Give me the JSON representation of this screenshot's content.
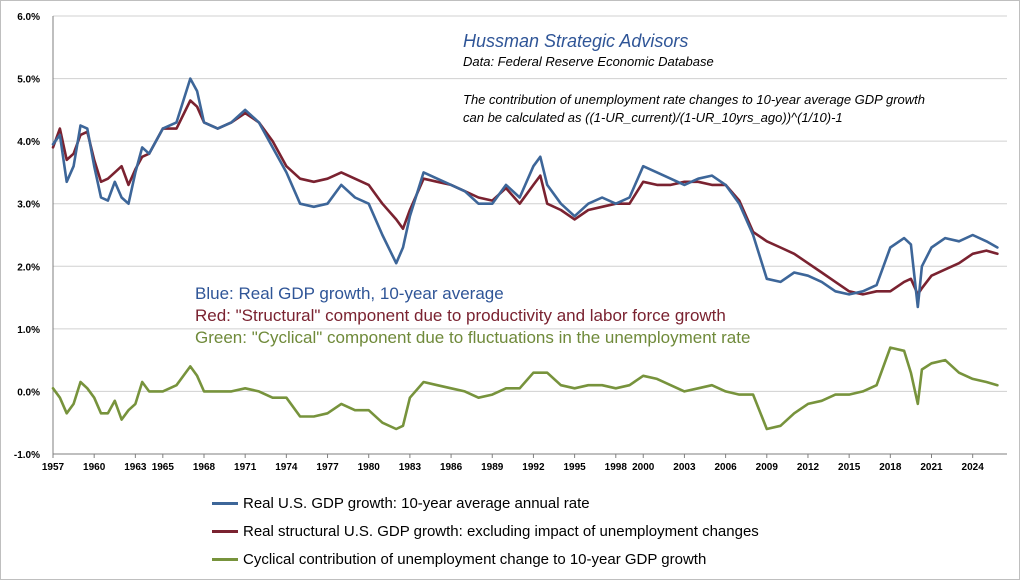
{
  "chart_data": {
    "type": "line",
    "title": "Hussman Strategic Advisors",
    "source": "Data: Federal Reserve Economic Database",
    "note_line1": "The contribution of unemployment rate changes to 10-year average GDP growth",
    "note_line2": "can be calculated as ((1-UR_current)/(1-UR_10yrs_ago))^(1/10)-1",
    "color_note_blue": "Blue: Real GDP growth, 10-year average",
    "color_note_red": "Red: \"Structural\" component due to productivity and labor force growth",
    "color_note_green": "Green: \"Cyclical\" component due to fluctuations in the unemployment rate",
    "xlim": [
      1957,
      2026.5
    ],
    "ylim": [
      -1.0,
      6.0
    ],
    "y_ticks": [
      "-1.0%",
      "0.0%",
      "1.0%",
      "2.0%",
      "3.0%",
      "4.0%",
      "5.0%",
      "6.0%"
    ],
    "x_ticks": [
      "1957",
      "1960",
      "1963",
      "1965",
      "1968",
      "1971",
      "1974",
      "1977",
      "1980",
      "1983",
      "1986",
      "1989",
      "1992",
      "1995",
      "1998",
      "2000",
      "2003",
      "2006",
      "2009",
      "2012",
      "2015",
      "2018",
      "2021",
      "2024"
    ],
    "grid": true,
    "series": [
      {
        "name": "Real U.S. GDP growth: 10-year average annual rate",
        "color": "#3d6699",
        "x": [
          1957,
          1957.5,
          1958,
          1958.5,
          1959,
          1959.5,
          1960,
          1960.5,
          1961,
          1961.5,
          1962,
          1962.5,
          1963,
          1963.5,
          1964,
          1965,
          1966,
          1967,
          1967.5,
          1968,
          1969,
          1970,
          1971,
          1972,
          1973,
          1974,
          1975,
          1976,
          1977,
          1978,
          1979,
          1980,
          1981,
          1982,
          1982.5,
          1983,
          1984,
          1985,
          1986,
          1987,
          1988,
          1989,
          1990,
          1991,
          1992,
          1992.5,
          1993,
          1994,
          1995,
          1996,
          1997,
          1998,
          1999,
          2000,
          2001,
          2002,
          2003,
          2004,
          2005,
          2006,
          2007,
          2008,
          2009,
          2010,
          2011,
          2012,
          2013,
          2014,
          2015,
          2016,
          2017,
          2018,
          2019,
          2019.5,
          2020,
          2020.3,
          2021,
          2022,
          2023,
          2024,
          2025,
          2025.8
        ],
        "values": [
          3.95,
          4.1,
          3.35,
          3.6,
          4.25,
          4.2,
          3.6,
          3.1,
          3.05,
          3.35,
          3.1,
          3.0,
          3.5,
          3.9,
          3.8,
          4.2,
          4.3,
          5.0,
          4.8,
          4.3,
          4.2,
          4.3,
          4.5,
          4.3,
          3.9,
          3.5,
          3.0,
          2.95,
          3.0,
          3.3,
          3.1,
          3.0,
          2.5,
          2.05,
          2.3,
          2.8,
          3.5,
          3.4,
          3.3,
          3.2,
          3.0,
          3.0,
          3.3,
          3.1,
          3.6,
          3.75,
          3.3,
          3.0,
          2.8,
          3.0,
          3.1,
          3.0,
          3.1,
          3.6,
          3.5,
          3.4,
          3.3,
          3.4,
          3.45,
          3.3,
          3.0,
          2.5,
          1.8,
          1.75,
          1.9,
          1.85,
          1.75,
          1.6,
          1.55,
          1.6,
          1.7,
          2.3,
          2.45,
          2.35,
          1.35,
          2.0,
          2.3,
          2.45,
          2.4,
          2.5,
          2.4,
          2.3
        ]
      },
      {
        "name": "Real structural U.S. GDP growth: excluding impact of unemployment changes",
        "color": "#7a2230",
        "x": [
          1957,
          1957.5,
          1958,
          1958.5,
          1959,
          1959.5,
          1960,
          1960.5,
          1961,
          1961.5,
          1962,
          1962.5,
          1963,
          1963.5,
          1964,
          1965,
          1966,
          1967,
          1967.5,
          1968,
          1969,
          1970,
          1971,
          1972,
          1973,
          1974,
          1975,
          1976,
          1977,
          1978,
          1979,
          1980,
          1981,
          1982,
          1982.5,
          1983,
          1984,
          1985,
          1986,
          1987,
          1988,
          1989,
          1990,
          1991,
          1992,
          1992.5,
          1993,
          1994,
          1995,
          1996,
          1997,
          1998,
          1999,
          2000,
          2001,
          2002,
          2003,
          2004,
          2005,
          2006,
          2007,
          2008,
          2009,
          2010,
          2011,
          2012,
          2013,
          2014,
          2015,
          2016,
          2017,
          2018,
          2019,
          2019.5,
          2020,
          2020.3,
          2021,
          2022,
          2023,
          2024,
          2025,
          2025.8
        ],
        "values": [
          3.9,
          4.2,
          3.7,
          3.8,
          4.1,
          4.15,
          3.7,
          3.35,
          3.4,
          3.5,
          3.6,
          3.3,
          3.55,
          3.75,
          3.8,
          4.2,
          4.2,
          4.65,
          4.55,
          4.3,
          4.2,
          4.3,
          4.45,
          4.3,
          4.0,
          3.6,
          3.4,
          3.35,
          3.4,
          3.5,
          3.4,
          3.3,
          3.0,
          2.75,
          2.6,
          2.9,
          3.4,
          3.35,
          3.3,
          3.2,
          3.1,
          3.05,
          3.25,
          3.0,
          3.3,
          3.45,
          3.0,
          2.9,
          2.75,
          2.9,
          2.95,
          3.0,
          3.0,
          3.35,
          3.3,
          3.3,
          3.35,
          3.35,
          3.3,
          3.3,
          3.05,
          2.55,
          2.4,
          2.3,
          2.2,
          2.05,
          1.9,
          1.75,
          1.6,
          1.55,
          1.6,
          1.6,
          1.75,
          1.8,
          1.55,
          1.65,
          1.85,
          1.95,
          2.05,
          2.2,
          2.25,
          2.2
        ]
      },
      {
        "name": "Cyclical contribution of unemployment change to 10-year GDP growth",
        "color": "#77933c",
        "x": [
          1957,
          1957.5,
          1958,
          1958.5,
          1959,
          1959.5,
          1960,
          1960.5,
          1961,
          1961.5,
          1962,
          1962.5,
          1963,
          1963.5,
          1964,
          1965,
          1966,
          1967,
          1967.5,
          1968,
          1969,
          1970,
          1971,
          1972,
          1973,
          1974,
          1975,
          1976,
          1977,
          1978,
          1979,
          1980,
          1981,
          1982,
          1982.5,
          1983,
          1984,
          1985,
          1986,
          1987,
          1988,
          1989,
          1990,
          1991,
          1992,
          1992.5,
          1993,
          1994,
          1995,
          1996,
          1997,
          1998,
          1999,
          2000,
          2001,
          2002,
          2003,
          2004,
          2005,
          2006,
          2007,
          2008,
          2009,
          2010,
          2011,
          2012,
          2013,
          2014,
          2015,
          2016,
          2017,
          2018,
          2019,
          2019.5,
          2020,
          2020.3,
          2021,
          2022,
          2023,
          2024,
          2025,
          2025.8
        ],
        "values": [
          0.05,
          -0.1,
          -0.35,
          -0.2,
          0.15,
          0.05,
          -0.1,
          -0.35,
          -0.35,
          -0.15,
          -0.45,
          -0.3,
          -0.2,
          0.15,
          0.0,
          0.0,
          0.1,
          0.4,
          0.25,
          0.0,
          0.0,
          0.0,
          0.05,
          0.0,
          -0.1,
          -0.1,
          -0.4,
          -0.4,
          -0.35,
          -0.2,
          -0.3,
          -0.3,
          -0.5,
          -0.6,
          -0.55,
          -0.1,
          0.15,
          0.1,
          0.05,
          0.0,
          -0.1,
          -0.05,
          0.05,
          0.05,
          0.3,
          0.3,
          0.3,
          0.1,
          0.05,
          0.1,
          0.1,
          0.05,
          0.1,
          0.25,
          0.2,
          0.1,
          0.0,
          0.05,
          0.1,
          0.0,
          -0.05,
          -0.05,
          -0.6,
          -0.55,
          -0.35,
          -0.2,
          -0.15,
          -0.05,
          -0.05,
          0.0,
          0.1,
          0.7,
          0.65,
          0.3,
          -0.2,
          0.35,
          0.45,
          0.5,
          0.3,
          0.2,
          0.15,
          0.1
        ]
      }
    ]
  }
}
